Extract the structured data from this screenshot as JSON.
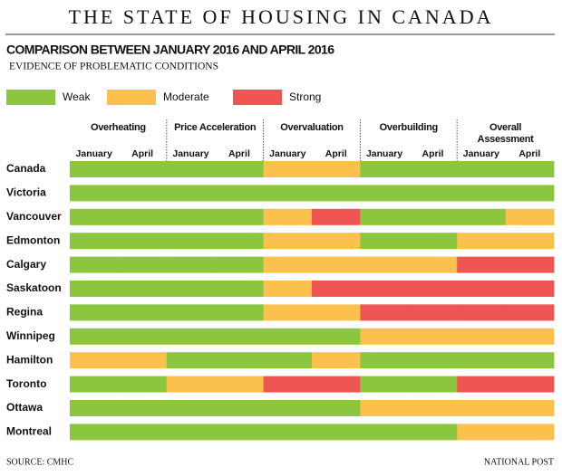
{
  "chart_data": {
    "type": "heatmap",
    "title": "THE STATE OF HOUSING IN CANADA",
    "subtitle": "COMPARISON BETWEEN JANUARY 2016 AND APRIL 2016",
    "caption": "EVIDENCE OF PROBLEMATIC CONDITIONS",
    "levels": [
      {
        "name": "Weak",
        "color": "#8cc63e"
      },
      {
        "name": "Moderate",
        "color": "#fcc04c"
      },
      {
        "name": "Strong",
        "color": "#ef5552"
      }
    ],
    "groups": [
      "Overheating",
      "Price Acceleration",
      "Overvaluation",
      "Overbuilding",
      "Overall Assessment"
    ],
    "periods": [
      "January",
      "April"
    ],
    "rows": [
      {
        "name": "Canada",
        "values": [
          "Weak",
          "Weak",
          "Weak",
          "Weak",
          "Moderate",
          "Moderate",
          "Weak",
          "Weak",
          "Weak",
          "Weak"
        ]
      },
      {
        "name": "Victoria",
        "values": [
          "Weak",
          "Weak",
          "Weak",
          "Weak",
          "Weak",
          "Weak",
          "Weak",
          "Weak",
          "Weak",
          "Weak"
        ]
      },
      {
        "name": "Vancouver",
        "values": [
          "Weak",
          "Weak",
          "Weak",
          "Weak",
          "Moderate",
          "Strong",
          "Weak",
          "Weak",
          "Weak",
          "Moderate"
        ]
      },
      {
        "name": "Edmonton",
        "values": [
          "Weak",
          "Weak",
          "Weak",
          "Weak",
          "Moderate",
          "Moderate",
          "Weak",
          "Weak",
          "Moderate",
          "Moderate"
        ]
      },
      {
        "name": "Calgary",
        "values": [
          "Weak",
          "Weak",
          "Weak",
          "Weak",
          "Moderate",
          "Moderate",
          "Moderate",
          "Moderate",
          "Strong",
          "Strong"
        ]
      },
      {
        "name": "Saskatoon",
        "values": [
          "Weak",
          "Weak",
          "Weak",
          "Weak",
          "Moderate",
          "Strong",
          "Strong",
          "Strong",
          "Strong",
          "Strong"
        ]
      },
      {
        "name": "Regina",
        "values": [
          "Weak",
          "Weak",
          "Weak",
          "Weak",
          "Moderate",
          "Moderate",
          "Strong",
          "Strong",
          "Strong",
          "Strong"
        ]
      },
      {
        "name": "Winnipeg",
        "values": [
          "Weak",
          "Weak",
          "Weak",
          "Weak",
          "Weak",
          "Weak",
          "Moderate",
          "Moderate",
          "Moderate",
          "Moderate"
        ]
      },
      {
        "name": "Hamilton",
        "values": [
          "Moderate",
          "Moderate",
          "Weak",
          "Weak",
          "Weak",
          "Moderate",
          "Weak",
          "Weak",
          "Weak",
          "Weak"
        ]
      },
      {
        "name": "Toronto",
        "values": [
          "Weak",
          "Weak",
          "Moderate",
          "Moderate",
          "Strong",
          "Strong",
          "Weak",
          "Weak",
          "Strong",
          "Strong"
        ]
      },
      {
        "name": "Ottawa",
        "values": [
          "Weak",
          "Weak",
          "Weak",
          "Weak",
          "Weak",
          "Weak",
          "Moderate",
          "Moderate",
          "Moderate",
          "Moderate"
        ]
      },
      {
        "name": "Montreal",
        "values": [
          "Weak",
          "Weak",
          "Weak",
          "Weak",
          "Weak",
          "Weak",
          "Weak",
          "Weak",
          "Moderate",
          "Moderate"
        ]
      }
    ],
    "source": "SOURCE: CMHC",
    "credit": "NATIONAL POST"
  }
}
